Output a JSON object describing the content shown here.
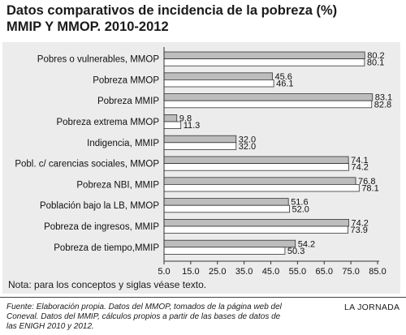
{
  "title_line1": "Datos comparativos de incidencia de la pobreza (%)",
  "title_line2": "MMIP Y MMOP. 2010-2012",
  "note": "Nota: para los conceptos y siglas véase texto.",
  "source": "Fuente: Elaboración propia. Datos del MMOP, tomados de la página web del Coneval. Datos del MMIP, cálculos propios a partir de las bases de datos de las ENIGH 2010 y 2012.",
  "brand": "LA JORNADA",
  "colors": {
    "bar2010": "#bdbdbd",
    "bar2012": "#ffffff",
    "panel": "#ececec",
    "stroke": "#333333"
  },
  "chart_data": {
    "type": "bar",
    "orientation": "horizontal",
    "categories": [
      "Pobres o vulnerables, MMOP",
      "Pobreza MMOP",
      "Pobreza MMIP",
      "Pobreza extrema MMOP",
      "Indigencia, MMIP",
      "Pobl. c/ carencias sociales, MMOP",
      "Pobreza NBI, MMIP",
      "Población bajo la LB, MMOP",
      "Pobreza de ingresos, MMIP",
      "Pobreza de tiempo,MMIP"
    ],
    "series": [
      {
        "values": [
          80.2,
          45.6,
          83.1,
          9.8,
          32.0,
          74.1,
          76.8,
          51.6,
          74.2,
          54.2
        ]
      },
      {
        "values": [
          80.1,
          46.1,
          82.8,
          11.3,
          32.0,
          74.2,
          78.1,
          52.0,
          73.9,
          50.3
        ]
      }
    ],
    "value_labels": [
      [
        "80.2",
        "45.6",
        "83.1",
        "9.8",
        "32.0",
        "74.1",
        "76.8",
        "51.6",
        "74.2",
        "54.2"
      ],
      [
        "80.1",
        "46.1",
        "82.8",
        "11.3",
        "32.0",
        "74.2",
        "78.1",
        "52.0",
        "73.9",
        "50.3"
      ]
    ],
    "xlim": [
      5,
      85
    ],
    "xticks": [
      "5.0",
      "15.0",
      "25.0",
      "35.0",
      "45.0",
      "55.0",
      "65.0",
      "75.0",
      "85.0"
    ],
    "grid": false,
    "legend": "none"
  }
}
